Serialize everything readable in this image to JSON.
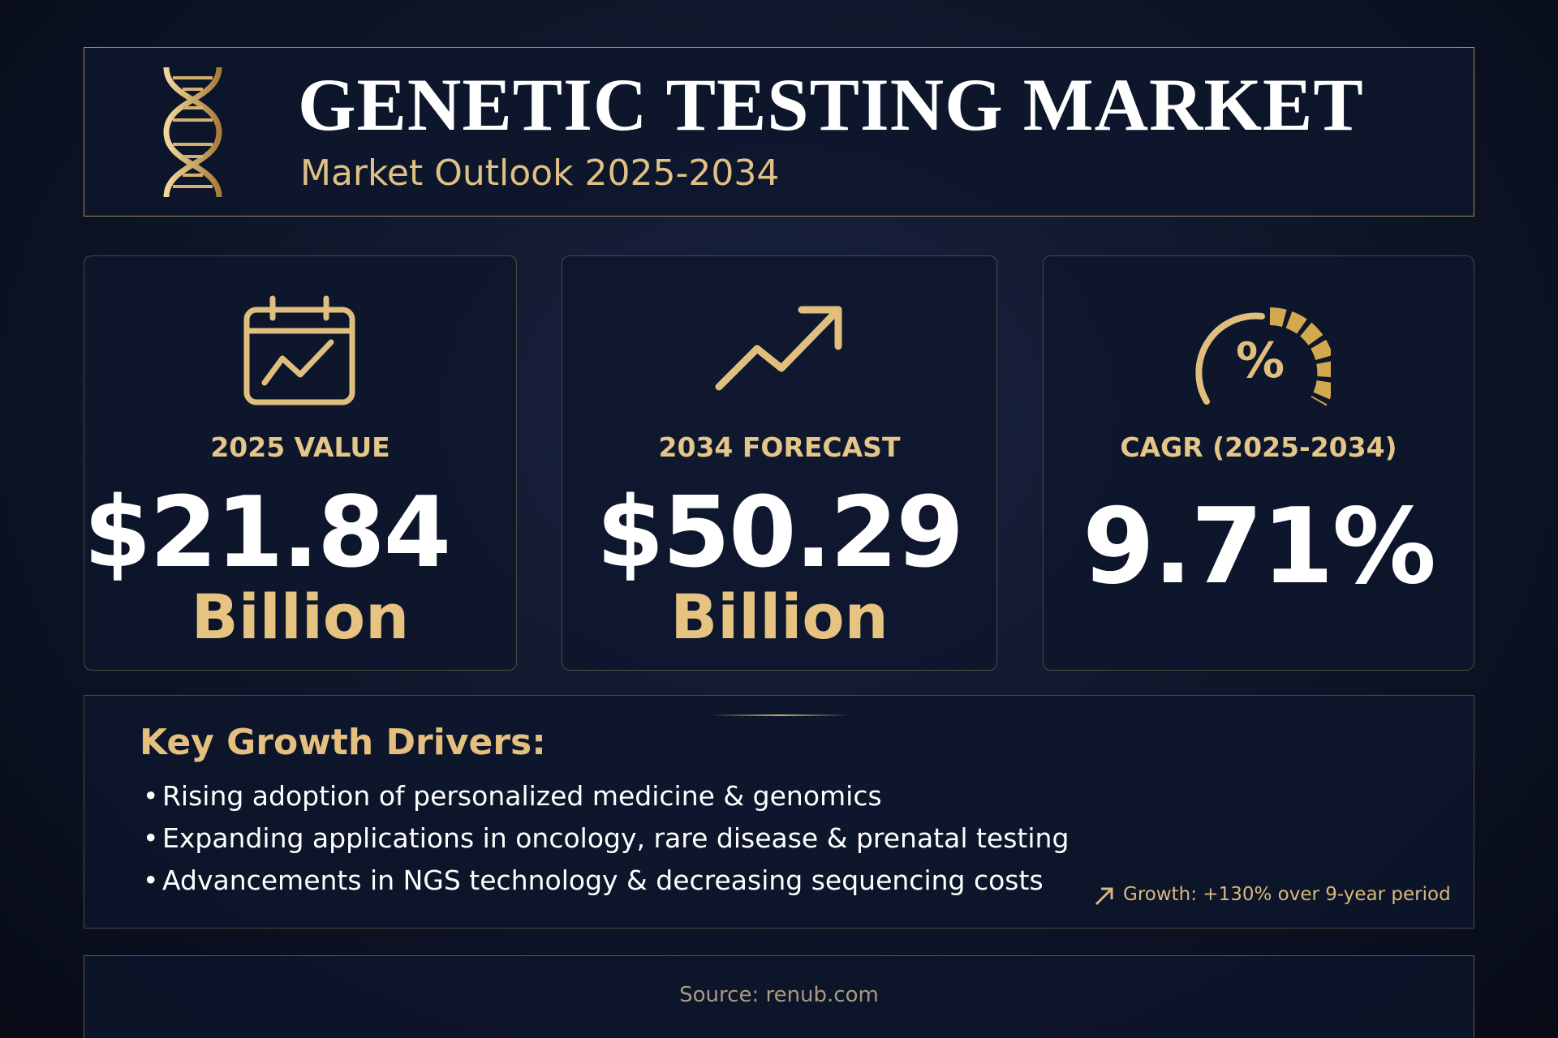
{
  "header": {
    "title": "GENETIC TESTING MARKET",
    "subtitle": "Market Outlook 2025-2034"
  },
  "cards": [
    {
      "label": "2025 VALUE",
      "value": "$21.84",
      "unit": "Billion"
    },
    {
      "label": "2034 FORECAST",
      "value": "$50.29",
      "unit": "Billion"
    },
    {
      "label": "CAGR (2025-2034)",
      "value": "9.71%"
    }
  ],
  "drivers": {
    "title": "Key Growth Drivers:",
    "items": [
      "Rising adoption of personalized medicine & genomics",
      "Expanding applications in oncology, rare disease & prenatal testing",
      "Advancements in NGS technology & decreasing sequencing costs"
    ],
    "note": "Growth: +130% over 9-year period"
  },
  "footer": {
    "source": "Source: renub.com"
  }
}
